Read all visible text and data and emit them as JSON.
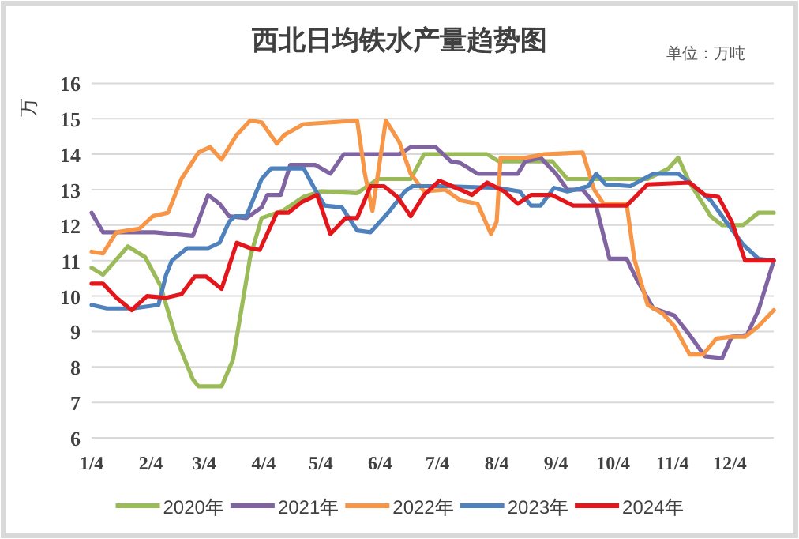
{
  "chart_data": {
    "type": "line",
    "title": "西北日均铁水产量趋势图",
    "ylabel": "万",
    "annotations": [
      "单位：万吨"
    ],
    "xlim": [
      "--01-04",
      "--12-27"
    ],
    "xticks": [
      {
        "value": "--01-04",
        "label": "1/4"
      },
      {
        "value": "--02-04",
        "label": "2/4"
      },
      {
        "value": "--03-04",
        "label": "3/4"
      },
      {
        "value": "--04-04",
        "label": "4/4"
      },
      {
        "value": "--05-04",
        "label": "5/4"
      },
      {
        "value": "--06-04",
        "label": "6/4"
      },
      {
        "value": "--07-04",
        "label": "7/4"
      },
      {
        "value": "--08-04",
        "label": "8/4"
      },
      {
        "value": "--09-04",
        "label": "9/4"
      },
      {
        "value": "--10-04",
        "label": "10/4"
      },
      {
        "value": "--11-04",
        "label": "11/4"
      },
      {
        "value": "--12-04",
        "label": "12/4"
      }
    ],
    "ylim": [
      6,
      16
    ],
    "yticks": [
      6,
      7,
      8,
      9,
      10,
      11,
      12,
      13,
      14,
      15,
      16
    ],
    "grid": "y",
    "legend": "bottom",
    "series": [
      {
        "name": "2020年",
        "color": "#9bbb59",
        "x": [
          "--01-04",
          "--01-10",
          "--01-23",
          "--02-01",
          "--02-09",
          "--02-17",
          "--02-26",
          "--03-01",
          "--03-13",
          "--03-19",
          "--03-28",
          "--04-03",
          "--04-14",
          "--04-25",
          "--05-04",
          "--05-23",
          "--06-03",
          "--06-20",
          "--06-27",
          "--07-30",
          "--08-05",
          "--09-02",
          "--09-10",
          "--10-22",
          "--11-02",
          "--11-07",
          "--11-13",
          "--11-24",
          "--11-30",
          "--12-11",
          "--12-19",
          "--12-27"
        ],
        "values": [
          10.8,
          10.6,
          11.4,
          11.1,
          10.3,
          8.85,
          7.65,
          7.45,
          7.45,
          8.2,
          11.1,
          12.2,
          12.4,
          12.8,
          12.95,
          12.9,
          13.3,
          13.3,
          14.0,
          14.0,
          13.8,
          13.8,
          13.3,
          13.3,
          13.6,
          13.9,
          13.2,
          12.25,
          12.0,
          12.0,
          12.35,
          12.35
        ]
      },
      {
        "name": "2021年",
        "color": "#8064a2",
        "x": [
          "--01-04",
          "--01-10",
          "--01-15",
          "--02-06",
          "--02-26",
          "--03-06",
          "--03-12",
          "--03-17",
          "--03-26",
          "--04-03",
          "--04-06",
          "--04-13",
          "--04-18",
          "--05-01",
          "--05-09",
          "--05-16",
          "--06-14",
          "--06-20",
          "--07-03",
          "--07-11",
          "--07-16",
          "--07-25",
          "--08-15",
          "--08-19",
          "--08-27",
          "--09-04",
          "--09-10",
          "--09-18",
          "--09-25",
          "--10-02",
          "--10-11",
          "--10-16",
          "--10-25",
          "--11-05",
          "--11-13",
          "--11-21",
          "--11-30",
          "--12-05",
          "--12-13",
          "--12-19",
          "--12-27"
        ],
        "values": [
          12.35,
          11.8,
          11.8,
          11.8,
          11.7,
          12.85,
          12.6,
          12.25,
          12.2,
          12.5,
          12.85,
          12.85,
          13.7,
          13.7,
          13.45,
          14.0,
          14.0,
          14.2,
          14.2,
          13.8,
          13.75,
          13.45,
          13.45,
          13.8,
          13.9,
          13.45,
          13.0,
          13.0,
          12.55,
          11.05,
          11.05,
          10.5,
          9.65,
          9.45,
          8.9,
          8.3,
          8.25,
          8.85,
          8.9,
          9.6,
          11.0
        ]
      },
      {
        "name": "2022年",
        "color": "#f79646",
        "x": [
          "--01-04",
          "--01-10",
          "--01-17",
          "--01-29",
          "--02-05",
          "--02-13",
          "--02-20",
          "--03-01",
          "--03-07",
          "--03-13",
          "--03-21",
          "--03-28",
          "--04-03",
          "--04-11",
          "--04-15",
          "--04-25",
          "--05-23",
          "--05-27",
          "--05-31",
          "--06-07",
          "--06-14",
          "--06-20",
          "--06-27",
          "--07-08",
          "--07-16",
          "--07-25",
          "--08-01",
          "--08-04",
          "--08-06",
          "--08-19",
          "--08-29",
          "--09-18",
          "--09-24",
          "--09-29",
          "--10-11",
          "--10-15",
          "--10-22",
          "--10-30",
          "--11-05",
          "--11-13",
          "--11-20",
          "--11-27",
          "--12-05",
          "--12-12",
          "--12-19",
          "--12-27"
        ],
        "values": [
          11.25,
          11.2,
          11.8,
          11.9,
          12.25,
          12.35,
          13.3,
          14.05,
          14.2,
          13.85,
          14.55,
          14.95,
          14.9,
          14.3,
          14.55,
          14.85,
          14.95,
          13.45,
          12.4,
          14.95,
          14.35,
          13.45,
          12.95,
          13.0,
          12.7,
          12.6,
          11.75,
          12.1,
          13.9,
          13.9,
          14.0,
          14.05,
          13.0,
          12.6,
          12.6,
          11.05,
          9.75,
          9.5,
          9.15,
          8.35,
          8.35,
          8.8,
          8.85,
          8.85,
          9.15,
          9.6
        ]
      },
      {
        "name": "2023年",
        "color": "#4f81bd",
        "x": [
          "--01-04",
          "--01-12",
          "--01-26",
          "--02-08",
          "--02-12",
          "--02-15",
          "--02-23",
          "--03-06",
          "--03-12",
          "--03-17",
          "--03-20",
          "--03-26",
          "--04-03",
          "--04-08",
          "--04-17",
          "--04-25",
          "--05-01",
          "--05-06",
          "--05-15",
          "--05-23",
          "--05-30",
          "--06-09",
          "--06-17",
          "--06-21",
          "--07-08",
          "--08-05",
          "--08-16",
          "--08-22",
          "--08-27",
          "--09-03",
          "--09-10",
          "--09-14",
          "--09-21",
          "--09-25",
          "--09-30",
          "--10-13",
          "--10-25",
          "--11-07",
          "--11-13",
          "--11-24",
          "--12-02",
          "--12-11",
          "--12-19",
          "--12-27"
        ],
        "values": [
          9.75,
          9.65,
          9.65,
          9.75,
          10.6,
          11.0,
          11.35,
          11.35,
          11.5,
          12.1,
          12.25,
          12.25,
          13.3,
          13.6,
          13.6,
          13.6,
          13.0,
          12.55,
          12.5,
          11.85,
          11.8,
          12.4,
          12.95,
          13.1,
          13.1,
          13.05,
          12.95,
          12.55,
          12.55,
          13.05,
          12.95,
          13.0,
          13.1,
          13.45,
          13.15,
          13.1,
          13.45,
          13.45,
          13.2,
          12.7,
          12.1,
          11.45,
          11.05,
          11.0
        ]
      },
      {
        "name": "2024年",
        "color": "#e3161b",
        "x": [
          "--01-04",
          "--01-10",
          "--01-17",
          "--01-25",
          "--02-02",
          "--02-12",
          "--02-20",
          "--02-27",
          "--03-05",
          "--03-13",
          "--03-21",
          "--03-28",
          "--04-02",
          "--04-11",
          "--04-17",
          "--04-24",
          "--05-02",
          "--05-09",
          "--05-17",
          "--05-23",
          "--05-30",
          "--06-06",
          "--06-13",
          "--06-20",
          "--06-27",
          "--07-05",
          "--07-16",
          "--07-22",
          "--07-30",
          "--08-08",
          "--08-15",
          "--08-22",
          "--09-02",
          "--09-13",
          "--10-11",
          "--10-22",
          "--11-13",
          "--11-21",
          "--11-28",
          "--12-05",
          "--12-12",
          "--12-27"
        ],
        "values": [
          10.35,
          10.35,
          9.95,
          9.6,
          10.0,
          9.95,
          10.05,
          10.55,
          10.55,
          10.2,
          11.5,
          11.35,
          11.3,
          12.35,
          12.35,
          12.65,
          12.85,
          11.75,
          12.2,
          12.2,
          13.1,
          13.1,
          12.8,
          12.25,
          12.85,
          13.25,
          13.0,
          12.85,
          13.2,
          12.95,
          12.6,
          12.85,
          12.85,
          12.55,
          12.55,
          13.15,
          13.2,
          12.85,
          12.8,
          12.1,
          11.0,
          11.0
        ]
      }
    ]
  }
}
